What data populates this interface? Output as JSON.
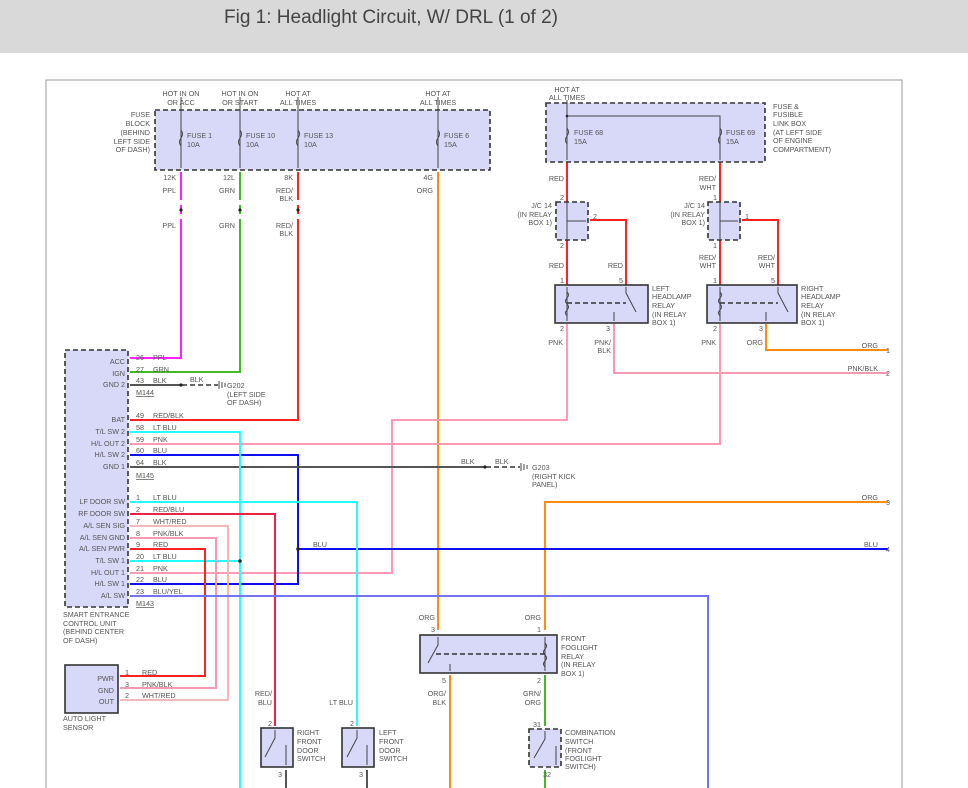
{
  "title": "Fig 1: Headlight Circuit, W/ DRL (1 of 2)",
  "fuse_block": {
    "label": [
      "FUSE",
      "BLOCK",
      "(BEHIND",
      "LEFT SIDE",
      "OF DASH)"
    ],
    "fuses": [
      {
        "hot": [
          "HOT IN ON",
          "OR ACC"
        ],
        "name": "FUSE 1",
        "rating": "10A",
        "pin": "12K",
        "wire": [
          "PPL",
          ""
        ]
      },
      {
        "hot": [
          "HOT IN ON",
          "OR START"
        ],
        "name": "FUSE 10",
        "rating": "10A",
        "pin": "12L",
        "wire": [
          "GRN",
          ""
        ]
      },
      {
        "hot": [
          "HOT AT",
          "ALL TIMES"
        ],
        "name": "FUSE 13",
        "rating": "10A",
        "pin": "8K",
        "wire": [
          "RED/",
          "BLK"
        ]
      },
      {
        "hot": [
          "HOT AT",
          "ALL TIMES"
        ],
        "name": "FUSE 6",
        "rating": "15A",
        "pin": "4G",
        "wire": [
          "ORG",
          ""
        ]
      }
    ]
  },
  "link_box": {
    "hot": [
      "HOT AT",
      "ALL TIMES"
    ],
    "label": [
      "FUSE &",
      "FUSIBLE",
      "LINK BOX",
      "(AT LEFT SIDE",
      "OF ENGINE",
      "COMPARTMENT)"
    ],
    "fuses": [
      {
        "name": "FUSE 68",
        "rating": "15A",
        "wire": [
          "RED",
          ""
        ]
      },
      {
        "name": "FUSE 69",
        "rating": "15A",
        "wire": [
          "RED/",
          "WHT"
        ]
      }
    ]
  },
  "junctions": [
    {
      "label": [
        "J/C 14",
        "(IN RELAY",
        "BOX 1)"
      ],
      "pin_in": "2",
      "pin_side": "2",
      "pin_out": "2",
      "wire_out": [
        "RED",
        ""
      ],
      "wire_side": [
        "RED",
        ""
      ]
    },
    {
      "label": [
        "J/C 14",
        "(IN RELAY",
        "BOX 1)"
      ],
      "pin_in": "1",
      "pin_side": "1",
      "pin_out": "1",
      "wire_out": [
        "RED/",
        "WHT"
      ],
      "wire_side": [
        "RED/",
        "WHT"
      ]
    }
  ],
  "headlamp_relays": [
    {
      "label": [
        "LEFT",
        "HEADLAMP",
        "RELAY",
        "(IN RELAY",
        "BOX 1)"
      ],
      "pins": [
        "1",
        "5",
        "2",
        "3"
      ],
      "wire_2": [
        "PNK",
        ""
      ],
      "wire_3": [
        "PNK/",
        "BLK"
      ]
    },
    {
      "label": [
        "RIGHT",
        "HEADLAMP",
        "RELAY",
        "(IN RELAY",
        "BOX 1)"
      ],
      "pins": [
        "1",
        "5",
        "2",
        "3"
      ],
      "wire_2": [
        "PNK",
        ""
      ],
      "wire_3": [
        "ORG",
        ""
      ]
    }
  ],
  "continuations": [
    {
      "wire": "ORG",
      "ref": "1"
    },
    {
      "wire": "PNK/BLK",
      "ref": "2"
    },
    {
      "wire": "ORG",
      "ref": "3"
    },
    {
      "wire": "BLU",
      "ref": "4"
    }
  ],
  "secu": {
    "label": [
      "SMART ENTRANCE",
      "CONTROL UNIT",
      "(BEHIND CENTER",
      "OF DASH)"
    ],
    "connectors": [
      "M144",
      "M145",
      "M143"
    ],
    "pins": [
      {
        "name": "ACC",
        "num": "26",
        "wire": "PPL"
      },
      {
        "name": "IGN",
        "num": "27",
        "wire": "GRN"
      },
      {
        "name": "GND 2",
        "num": "43",
        "wire": "BLK"
      },
      {
        "name": "BAT",
        "num": "49",
        "wire": "RED/BLK"
      },
      {
        "name": "T/L SW 2",
        "num": "58",
        "wire": "LT BLU"
      },
      {
        "name": "H/L OUT 2",
        "num": "59",
        "wire": "PNK"
      },
      {
        "name": "H/L SW 2",
        "num": "60",
        "wire": "BLU"
      },
      {
        "name": "GND 1",
        "num": "64",
        "wire": "BLK"
      },
      {
        "name": "LF DOOR SW",
        "num": "1",
        "wire": "LT BLU"
      },
      {
        "name": "RF DOOR SW",
        "num": "2",
        "wire": "RED/BLU"
      },
      {
        "name": "A/L SEN SIG",
        "num": "7",
        "wire": "WHT/RED"
      },
      {
        "name": "A/L SEN GND",
        "num": "8",
        "wire": "PNK/BLK"
      },
      {
        "name": "A/L SEN PWR",
        "num": "9",
        "wire": "RED"
      },
      {
        "name": "T/L SW 1",
        "num": "20",
        "wire": "LT BLU"
      },
      {
        "name": "H/L OUT 1",
        "num": "21",
        "wire": "PNK"
      },
      {
        "name": "H/L SW 1",
        "num": "22",
        "wire": "BLU"
      },
      {
        "name": "A/L SW",
        "num": "23",
        "wire": "BLU/YEL"
      }
    ]
  },
  "grounds": [
    {
      "wire": "BLK",
      "name": "G202",
      "location": [
        "(LEFT SIDE",
        "OF DASH)"
      ]
    },
    {
      "wire": [
        "BLK",
        "BLK"
      ],
      "name": "G203",
      "location": [
        "(RIGHT KICK",
        "PANEL)"
      ]
    }
  ],
  "bus_blu_label": "BLU",
  "auto_light_sensor": {
    "label": [
      "AUTO LIGHT",
      "SENSOR"
    ],
    "pins": [
      {
        "name": "PWR",
        "num": "1",
        "wire": "RED"
      },
      {
        "name": "GND",
        "num": "3",
        "wire": "PNK/BLK"
      },
      {
        "name": "OUT",
        "num": "2",
        "wire": "WHT/RED"
      }
    ]
  },
  "door_switches": [
    {
      "label": [
        "RIGHT",
        "FRONT",
        "DOOR",
        "SWITCH"
      ],
      "pin_top": "2",
      "pin_bottom": "3",
      "wire": [
        "RED/",
        "BLU"
      ]
    },
    {
      "label": [
        "LEFT",
        "FRONT",
        "DOOR",
        "SWITCH"
      ],
      "pin_top": "2",
      "pin_bottom": "3",
      "wire": [
        "LT BLU",
        ""
      ]
    }
  ],
  "foglight_relay": {
    "label": [
      "FRONT",
      "FOGLIGHT",
      "RELAY",
      "(IN RELAY",
      "BOX 1)"
    ],
    "pins": [
      "3",
      "1",
      "5",
      "2"
    ],
    "wire_in_3": "ORG",
    "wire_in_1": "ORG",
    "wire_5": [
      "ORG/",
      "BLK"
    ],
    "wire_2": [
      "GRN/",
      "ORG"
    ]
  },
  "combination_switch": {
    "label": [
      "COMBINATION",
      "SWITCH",
      "(FRONT",
      "FOGLIGHT",
      "SWITCH)"
    ],
    "pin_top": "31",
    "pin_bottom": "32"
  },
  "wire_colors": {
    "PPL": "#ff22ff",
    "GRN": "#44bb22",
    "RED": "#ff2222",
    "ORG": "#ff8c10",
    "PNK": "#ff9ab4",
    "LT BLU": "#22ffff",
    "BLU": "#1010ee",
    "BLK": "#555555",
    "WHT/RED": "#f3b8b8",
    "PNK/BLK": "#f59ab0",
    "BLU/YEL": "#7474f0",
    "box_fill": "#d8d8f8"
  }
}
